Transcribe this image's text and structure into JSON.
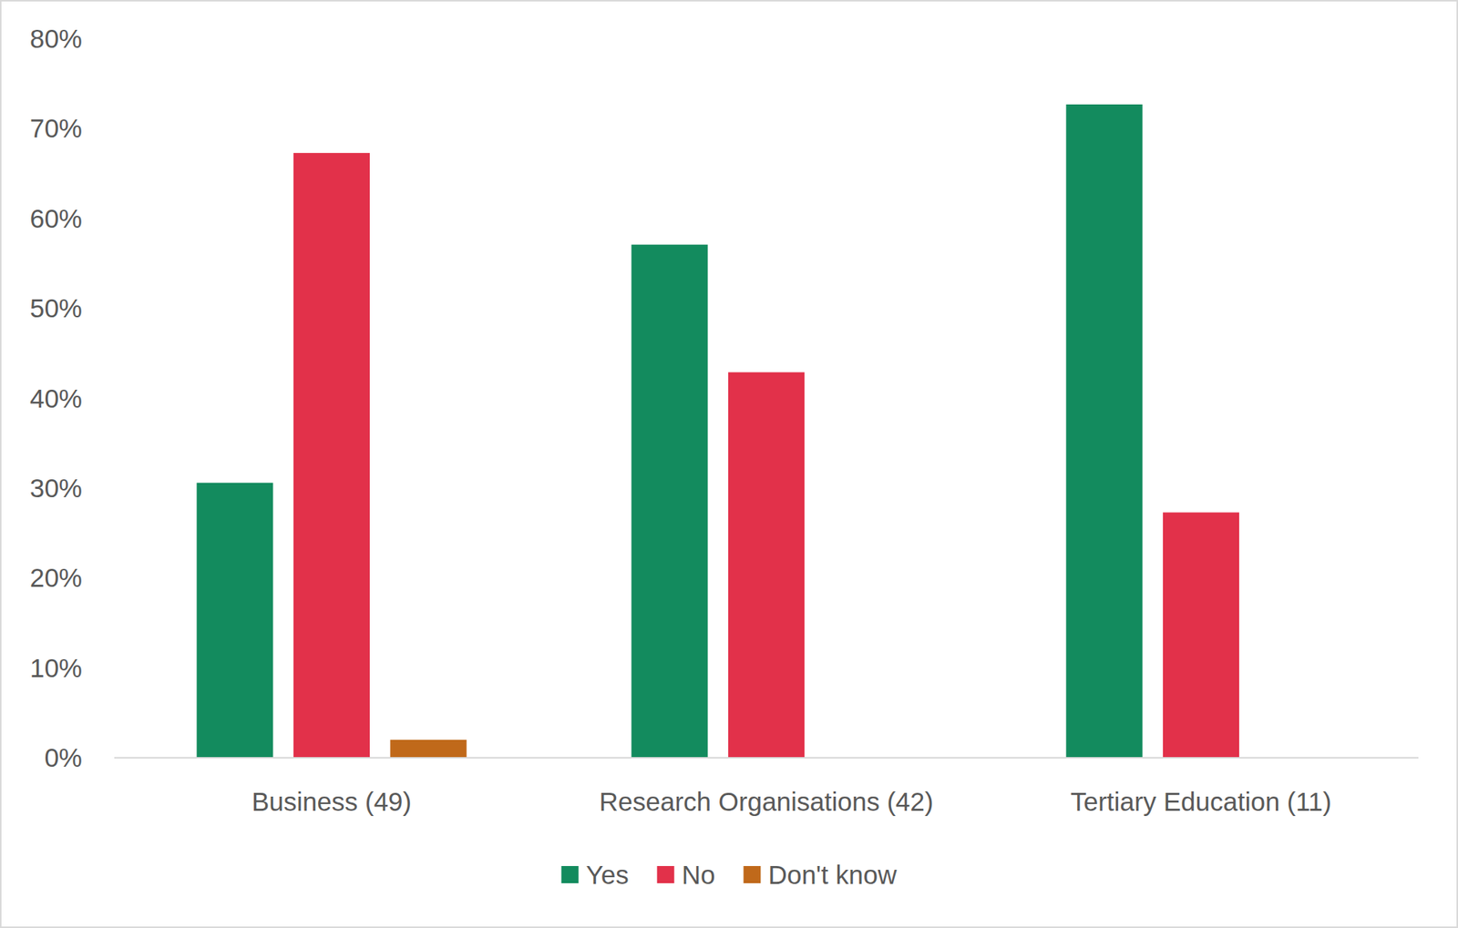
{
  "chart_data": {
    "type": "bar",
    "categories": [
      "Business (49)",
      "Research Organisations (42)",
      "Tertiary Education (11)"
    ],
    "series": [
      {
        "name": "Yes",
        "color": "#138b5e",
        "values": [
          30.6,
          57.1,
          72.7
        ]
      },
      {
        "name": "No",
        "color": "#e2314a",
        "values": [
          67.3,
          42.9,
          27.3
        ]
      },
      {
        "name": "Don't know",
        "color": "#c0691a",
        "values": [
          2.0,
          0,
          0
        ]
      }
    ],
    "ylim": [
      0,
      80
    ],
    "yticks": [
      {
        "value": 0,
        "label": "0%"
      },
      {
        "value": 10,
        "label": "10%"
      },
      {
        "value": 20,
        "label": "20%"
      },
      {
        "value": 30,
        "label": "30%"
      },
      {
        "value": 40,
        "label": "40%"
      },
      {
        "value": 50,
        "label": "50%"
      },
      {
        "value": 60,
        "label": "60%"
      },
      {
        "value": 70,
        "label": "70%"
      },
      {
        "value": 80,
        "label": "80%"
      }
    ],
    "grid": false,
    "legend": "bottom"
  }
}
